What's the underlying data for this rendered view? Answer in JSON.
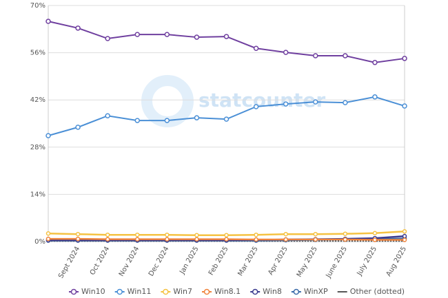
{
  "chart_data": {
    "type": "line",
    "watermark": "statcounter",
    "categories": [
      null,
      "Sept 2024",
      "Oct 2024",
      "Nov 2024",
      "Dec 2024",
      "Jan 2025",
      "Feb 2025",
      "Mar 2025",
      "Apr 2025",
      "May 2025",
      "June 2025",
      "July 2025",
      "Aug 2025"
    ],
    "series": [
      {
        "name": "Win10",
        "color": "#6f3f9f",
        "values": [
          65.3,
          63.3,
          60.2,
          61.4,
          61.4,
          60.6,
          60.8,
          57.3,
          56.1,
          55.1,
          55.1,
          53.1,
          54.3
        ]
      },
      {
        "name": "Win11",
        "color": "#4a8fd6",
        "values": [
          31.4,
          33.9,
          37.3,
          35.9,
          35.9,
          36.7,
          36.3,
          40.0,
          40.8,
          41.4,
          41.2,
          42.9,
          40.2
        ]
      },
      {
        "name": "Win7",
        "color": "#f5c242",
        "values": [
          2.4,
          2.2,
          2.0,
          2.0,
          2.0,
          1.9,
          1.9,
          2.0,
          2.2,
          2.2,
          2.3,
          2.5,
          3.0
        ]
      },
      {
        "name": "Win8.1",
        "color": "#f0843c",
        "values": [
          0.8,
          0.8,
          0.7,
          0.7,
          0.7,
          0.7,
          0.7,
          0.6,
          0.6,
          0.6,
          0.6,
          0.5,
          0.5
        ]
      },
      {
        "name": "Win8",
        "color": "#3b3b8f",
        "values": [
          0.4,
          0.4,
          0.4,
          0.4,
          0.4,
          0.4,
          0.4,
          0.5,
          0.6,
          0.7,
          0.8,
          1.0,
          1.6
        ]
      },
      {
        "name": "WinXP",
        "color": "#3a6aa8",
        "values": [
          0.3,
          0.3,
          0.3,
          0.3,
          0.3,
          0.3,
          0.3,
          0.3,
          0.4,
          0.5,
          0.6,
          0.7,
          0.9
        ]
      },
      {
        "name": "Other (dotted)",
        "color": "#555555",
        "values": [
          0.2,
          0.2,
          0.2,
          0.2,
          0.2,
          0.2,
          0.2,
          0.2,
          0.2,
          0.2,
          0.2,
          0.2,
          0.2
        ]
      }
    ],
    "ylim": [
      0,
      70
    ],
    "yticks": [
      {
        "value": 0,
        "label": "0%"
      },
      {
        "value": 14,
        "label": "14%"
      },
      {
        "value": 28,
        "label": "28%"
      },
      {
        "value": 42,
        "label": "42%"
      },
      {
        "value": 56,
        "label": "56%"
      },
      {
        "value": 70,
        "label": "70%"
      }
    ],
    "grid": true,
    "legend": "bottom"
  }
}
